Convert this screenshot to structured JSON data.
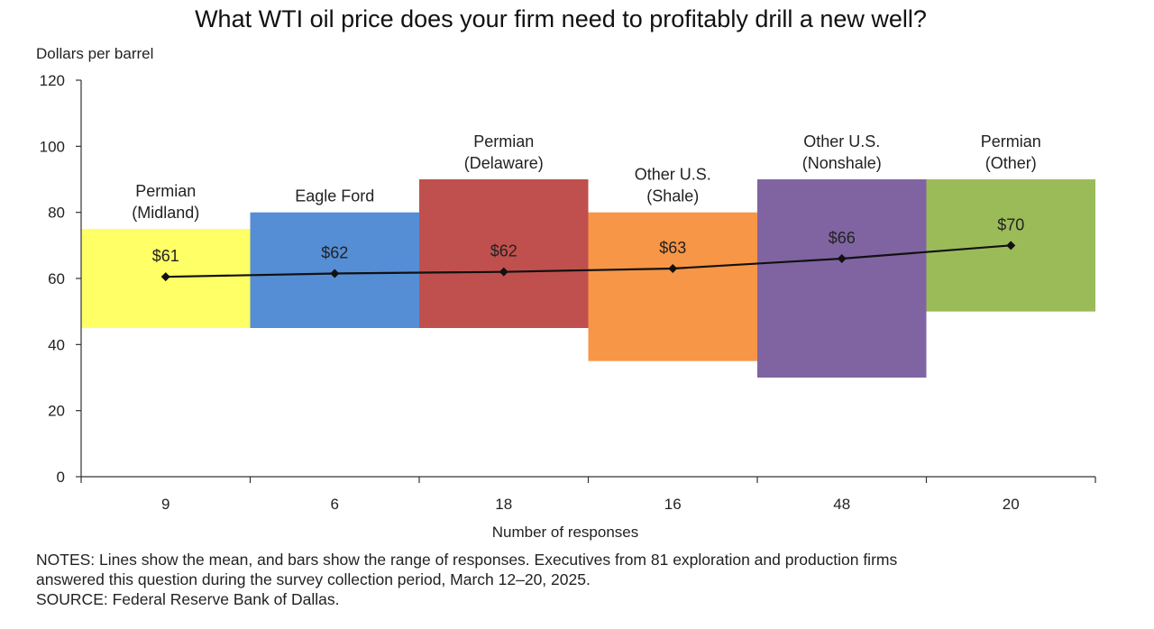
{
  "chart_data": {
    "type": "floating-bar-with-line",
    "title": "What WTI oil price does your firm need to profitably drill a new well?",
    "ylabel": "Dollars per barrel",
    "xlabel": "Number of responses",
    "ylim": [
      0,
      120
    ],
    "yticks": [
      0,
      20,
      40,
      60,
      80,
      100,
      120
    ],
    "grid": false,
    "categories": [
      {
        "name_lines": [
          "Permian",
          "(Midland)"
        ],
        "responses": "9",
        "low": 45,
        "high": 75,
        "mean": 60.5,
        "mean_label": "$61",
        "color": "#ffff66"
      },
      {
        "name_lines": [
          "Eagle Ford"
        ],
        "responses": "6",
        "low": 45,
        "high": 80,
        "mean": 61.5,
        "mean_label": "$62",
        "color": "#558ed5"
      },
      {
        "name_lines": [
          "Permian",
          "(Delaware)"
        ],
        "responses": "18",
        "low": 45,
        "high": 90,
        "mean": 62,
        "mean_label": "$62",
        "color": "#c0504d"
      },
      {
        "name_lines": [
          "Other U.S.",
          "(Shale)"
        ],
        "responses": "16",
        "low": 35,
        "high": 80,
        "mean": 63,
        "mean_label": "$63",
        "color": "#f79646"
      },
      {
        "name_lines": [
          "Other U.S.",
          "(Nonshale)"
        ],
        "responses": "48",
        "low": 30,
        "high": 90,
        "mean": 66,
        "mean_label": "$66",
        "color": "#8064a2"
      },
      {
        "name_lines": [
          "Permian",
          "(Other)"
        ],
        "responses": "20",
        "low": 50,
        "high": 90,
        "mean": 70,
        "mean_label": "$70",
        "color": "#9bbb59"
      }
    ]
  },
  "notes": {
    "line1": "NOTES: Lines show the mean, and bars show the range of responses. Executives from 81 exploration and production firms",
    "line2": "answered this question during the survey collection period, March 12–20, 2025.",
    "source": "SOURCE: Federal Reserve Bank of Dallas."
  }
}
